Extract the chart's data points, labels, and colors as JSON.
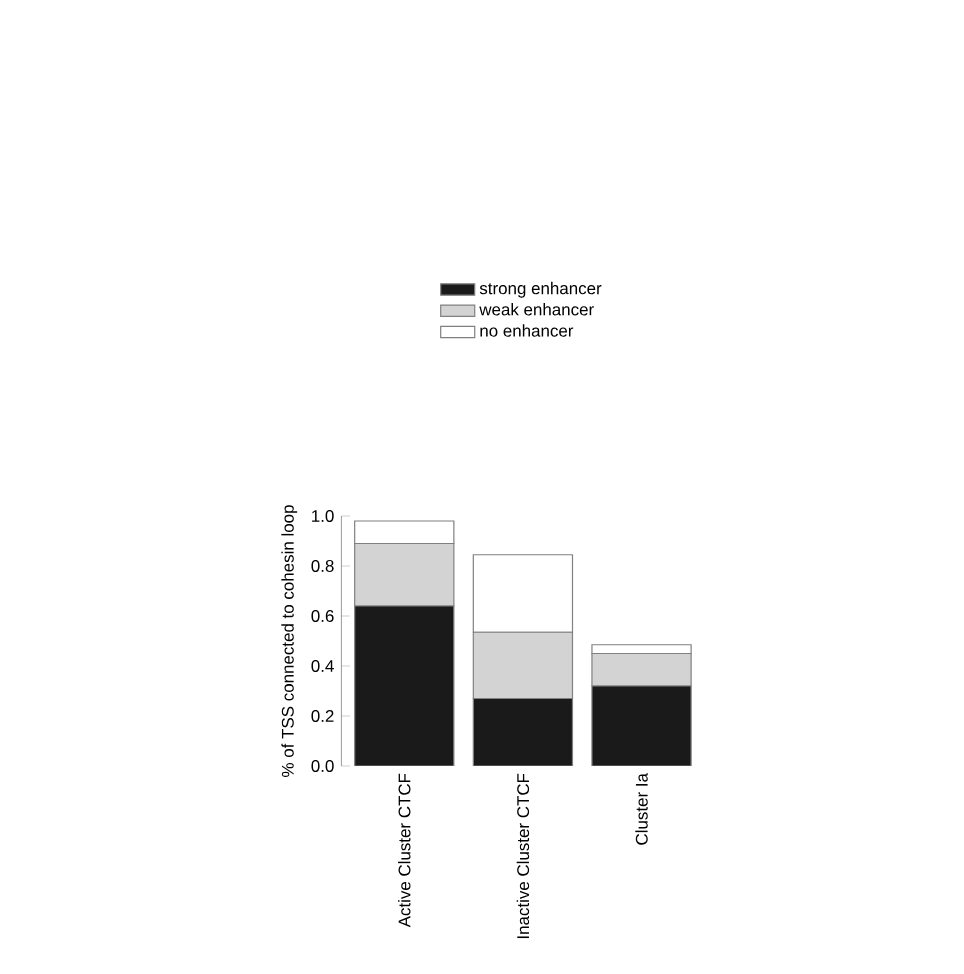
{
  "chart_data": {
    "type": "bar",
    "stacked": true,
    "ylabel": "% of TSS connected to cohesin loop",
    "categories": [
      "Active Cluster CTCF",
      "Inactive Cluster CTCF",
      "Cluster Ia"
    ],
    "series": [
      {
        "name": "strong enhancer",
        "color": "#1a1a1a",
        "values": [
          0.64,
          0.27,
          0.32
        ]
      },
      {
        "name": "weak enhancer",
        "color": "#d3d3d3",
        "values": [
          0.25,
          0.265,
          0.13
        ]
      },
      {
        "name": "no enhancer",
        "color": "#ffffff",
        "values": [
          0.09,
          0.31,
          0.035
        ]
      }
    ],
    "ylim": [
      0,
      1
    ],
    "yticks": [
      {
        "value": 0,
        "label": "0.0"
      },
      {
        "value": 0.2,
        "label": "0.2"
      },
      {
        "value": 0.4,
        "label": "0.4"
      },
      {
        "value": 0.6,
        "label": "0.6"
      },
      {
        "value": 0.8,
        "label": "0.8"
      },
      {
        "value": 1,
        "label": "1.0"
      }
    ],
    "legend": "top"
  }
}
